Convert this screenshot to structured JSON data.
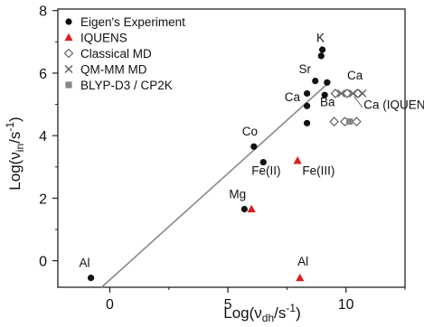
{
  "chart_data": {
    "type": "scatter",
    "xlabel_base": "Log(ν",
    "xlabel_sub": "dh",
    "xlabel_unit": "/s",
    "xlabel_exp": "-1",
    "xlabel_close": ")",
    "ylabel_base": "Log(ν",
    "ylabel_sub": "in",
    "ylabel_unit": "/s",
    "ylabel_exp": "-1",
    "ylabel_close": ")",
    "xlim": [
      -2.2,
      12.5
    ],
    "ylim": [
      -0.85,
      8.05
    ],
    "x_ticks": [
      {
        "value": 0,
        "label": "0"
      },
      {
        "value": 5,
        "label": "5"
      },
      {
        "value": 10,
        "label": "10"
      }
    ],
    "y_ticks": [
      {
        "value": 0,
        "label": "0"
      },
      {
        "value": 2,
        "label": "2"
      },
      {
        "value": 4,
        "label": "4"
      },
      {
        "value": 6,
        "label": "6"
      },
      {
        "value": 8,
        "label": "8"
      }
    ],
    "grid": false,
    "legend_position": "top-left",
    "fit_line": {
      "x": [
        -0.35,
        9.35
      ],
      "y": [
        -0.85,
        5.75
      ],
      "color": "#888888"
    },
    "series": [
      {
        "name": "Eigen's Experiment",
        "marker": "circle",
        "color": "#111111",
        "points": [
          {
            "x": -0.8,
            "y": -0.55
          },
          {
            "x": 5.7,
            "y": 1.65
          },
          {
            "x": 6.1,
            "y": 3.65
          },
          {
            "x": 6.5,
            "y": 3.15
          },
          {
            "x": 8.35,
            "y": 4.4
          },
          {
            "x": 8.35,
            "y": 4.95
          },
          {
            "x": 8.35,
            "y": 5.35
          },
          {
            "x": 8.7,
            "y": 5.75
          },
          {
            "x": 9.1,
            "y": 5.3
          },
          {
            "x": 9.2,
            "y": 5.7
          },
          {
            "x": 8.95,
            "y": 6.55
          },
          {
            "x": 9.0,
            "y": 6.75
          }
        ]
      },
      {
        "name": "IQUENS",
        "marker": "triangle",
        "color": "#d62020",
        "points": [
          {
            "x": 6.0,
            "y": 1.65
          },
          {
            "x": 7.95,
            "y": 3.2
          },
          {
            "x": 8.05,
            "y": -0.55
          }
        ]
      },
      {
        "name": "Classical MD",
        "marker": "diamond",
        "color": "#555555",
        "points": [
          {
            "x": 9.5,
            "y": 4.45
          },
          {
            "x": 9.95,
            "y": 4.45
          },
          {
            "x": 10.45,
            "y": 4.45
          },
          {
            "x": 9.55,
            "y": 5.35
          },
          {
            "x": 10.05,
            "y": 5.35
          },
          {
            "x": 10.5,
            "y": 5.35
          }
        ]
      },
      {
        "name": "QM-MM MD",
        "marker": "x",
        "color": "#555555",
        "points": [
          {
            "x": 9.8,
            "y": 5.35
          },
          {
            "x": 10.3,
            "y": 5.35
          },
          {
            "x": 10.7,
            "y": 5.35
          }
        ]
      },
      {
        "name": "BLYP-D3 / CP2K",
        "marker": "square",
        "color": "#888888",
        "points": [
          {
            "x": 10.15,
            "y": 4.45
          }
        ]
      }
    ],
    "annotations": [
      {
        "text": "Al",
        "x": -1.3,
        "y": -0.2
      },
      {
        "text": "Mg",
        "x": 5.05,
        "y": 2.0
      },
      {
        "text": "Co",
        "x": 5.6,
        "y": 4.0
      },
      {
        "text": "Fe(II)",
        "x": 6.0,
        "y": 2.75
      },
      {
        "text": "Fe(III)",
        "x": 8.15,
        "y": 2.75
      },
      {
        "text": "Al",
        "x": 7.95,
        "y": -0.15
      },
      {
        "text": "Ca",
        "x": 7.4,
        "y": 5.1
      },
      {
        "text": "Sr",
        "x": 8.0,
        "y": 6.0
      },
      {
        "text": "Ba",
        "x": 8.9,
        "y": 4.95
      },
      {
        "text": "K",
        "x": 8.75,
        "y": 7.0
      },
      {
        "text": "Ca",
        "x": 10.05,
        "y": 5.8
      },
      {
        "text": "Ca (IQUENS)",
        "x": 10.75,
        "y": 4.85
      }
    ],
    "ca_iquens_pointer": {
      "from": [
        10.7,
        4.9
      ],
      "to": [
        10.35,
        5.25
      ]
    }
  }
}
